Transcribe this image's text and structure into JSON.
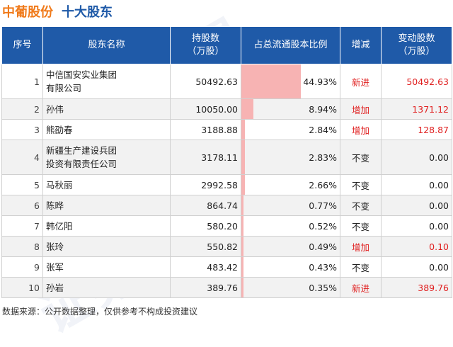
{
  "header": {
    "company": "中葡股份",
    "subtitle": "十大股东"
  },
  "watermark": [
    "证券之星",
    "证券之星",
    "证券之星"
  ],
  "table": {
    "columns": [
      "序号",
      "股东名称",
      "持股数\n（万股）",
      "占总流通股本比例",
      "增减",
      "变动股数\n（万股）"
    ],
    "rows": [
      {
        "idx": "1",
        "name": "中信国安实业集团\n有限公司",
        "shares": "50492.63",
        "ratio": "44.93%",
        "ratio_value": 44.93,
        "change": "新进",
        "change_color": "#e02020",
        "delta": "50492.63",
        "delta_color": "#e02020"
      },
      {
        "idx": "2",
        "name": "孙伟",
        "shares": "10050.00",
        "ratio": "8.94%",
        "ratio_value": 8.94,
        "change": "增加",
        "change_color": "#e02020",
        "delta": "1371.12",
        "delta_color": "#e02020"
      },
      {
        "idx": "3",
        "name": "熊劭春",
        "shares": "3188.88",
        "ratio": "2.84%",
        "ratio_value": 2.84,
        "change": "增加",
        "change_color": "#e02020",
        "delta": "128.87",
        "delta_color": "#e02020"
      },
      {
        "idx": "4",
        "name": "新疆生产建设兵团\n投资有限责任公司",
        "shares": "3178.11",
        "ratio": "2.83%",
        "ratio_value": 2.83,
        "change": "不变",
        "change_color": "#222222",
        "delta": "0.00",
        "delta_color": "#222222"
      },
      {
        "idx": "5",
        "name": "马秋丽",
        "shares": "2992.58",
        "ratio": "2.66%",
        "ratio_value": 2.66,
        "change": "不变",
        "change_color": "#222222",
        "delta": "0.00",
        "delta_color": "#222222"
      },
      {
        "idx": "6",
        "name": "陈晔",
        "shares": "864.74",
        "ratio": "0.77%",
        "ratio_value": 0.77,
        "change": "不变",
        "change_color": "#222222",
        "delta": "0.00",
        "delta_color": "#222222"
      },
      {
        "idx": "7",
        "name": "韩亿阳",
        "shares": "580.20",
        "ratio": "0.52%",
        "ratio_value": 0.52,
        "change": "不变",
        "change_color": "#222222",
        "delta": "0.00",
        "delta_color": "#222222"
      },
      {
        "idx": "8",
        "name": "张玲",
        "shares": "550.82",
        "ratio": "0.49%",
        "ratio_value": 0.49,
        "change": "增加",
        "change_color": "#e02020",
        "delta": "0.10",
        "delta_color": "#e02020"
      },
      {
        "idx": "9",
        "name": "张军",
        "shares": "483.42",
        "ratio": "0.43%",
        "ratio_value": 0.43,
        "change": "不变",
        "change_color": "#222222",
        "delta": "0.00",
        "delta_color": "#222222"
      },
      {
        "idx": "10",
        "name": "孙岩",
        "shares": "389.76",
        "ratio": "0.35%",
        "ratio_value": 0.35,
        "change": "新进",
        "change_color": "#e02020",
        "delta": "389.76",
        "delta_color": "#e02020"
      }
    ]
  },
  "colors": {
    "header_bg": "#1f5aa8",
    "company": "#f07a1a",
    "bar": "#f7b3b3",
    "increase": "#e02020"
  },
  "footer": "数据来源：公开数据整理，仅供参考不构成投资建议"
}
